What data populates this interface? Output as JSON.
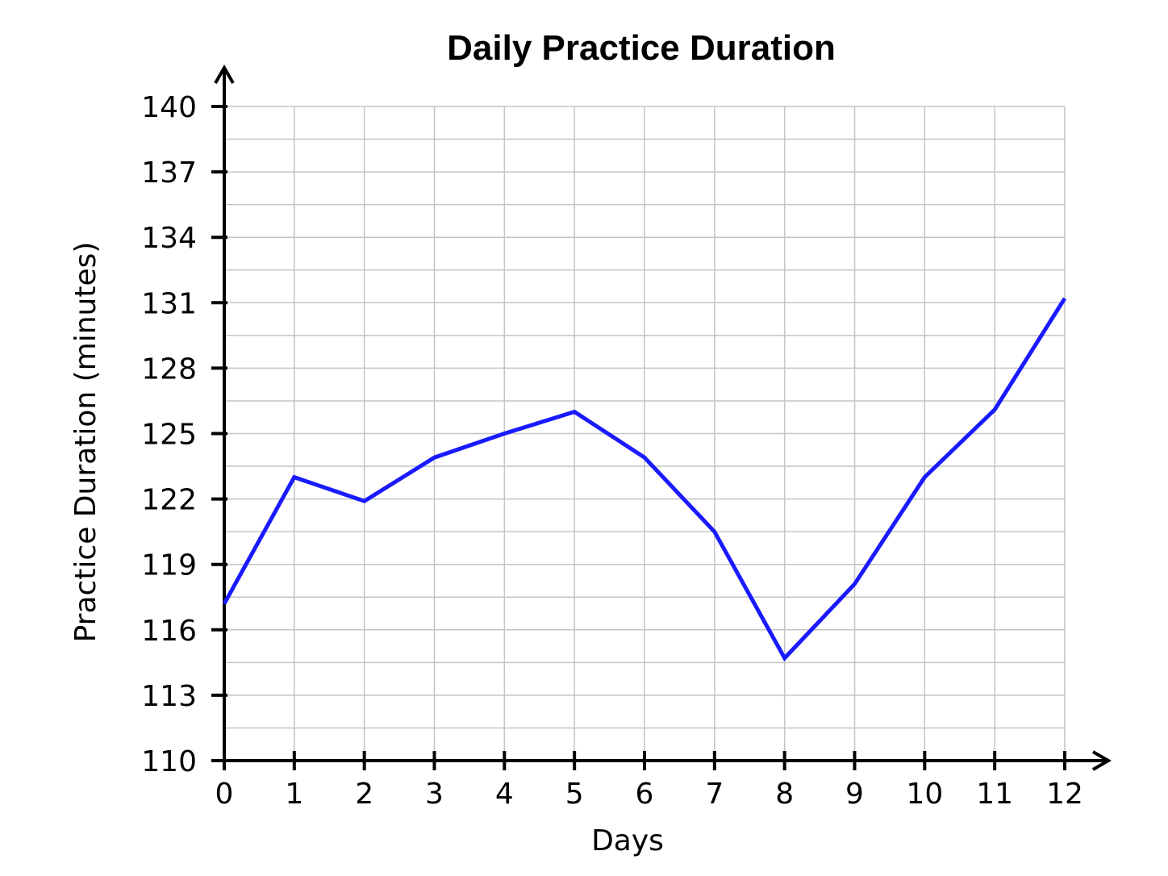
{
  "chart_data": {
    "type": "line",
    "title": "Daily Practice Duration",
    "xlabel": "Days",
    "ylabel": "Practice Duration (minutes)",
    "x": [
      0,
      1,
      2,
      3,
      4,
      5,
      6,
      7,
      8,
      9,
      10,
      11,
      12
    ],
    "xlim": [
      0,
      12
    ],
    "ylim": [
      110,
      140
    ],
    "x_ticks": [
      "0",
      "1",
      "2",
      "3",
      "4",
      "5",
      "6",
      "7",
      "8",
      "9",
      "10",
      "11",
      "12"
    ],
    "y_ticks": [
      "110",
      "113",
      "116",
      "119",
      "122",
      "125",
      "128",
      "131",
      "134",
      "137",
      "140"
    ],
    "grid": true,
    "series": [
      {
        "values": [
          117.2,
          123.0,
          121.9,
          123.9,
          125.0,
          126.0,
          123.9,
          120.5,
          114.7,
          118.1,
          123.0,
          126.1,
          131.2
        ],
        "color": "#1a1aff"
      }
    ]
  }
}
